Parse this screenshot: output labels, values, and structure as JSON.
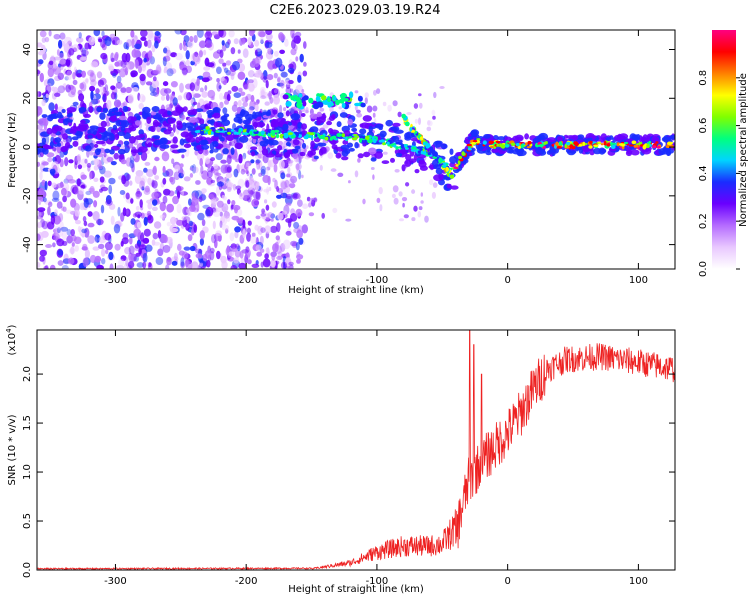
{
  "title": "C2E6.2023.029.03.19.R24",
  "chart_data": [
    {
      "type": "heatmap",
      "xlabel": "Height of straight line (km)",
      "ylabel": "Frequency (Hz)",
      "xlim": [
        -360,
        128
      ],
      "ylim": [
        -50,
        48
      ],
      "xticks": [
        -300,
        -200,
        -100,
        0,
        100
      ],
      "yticks": [
        -40,
        -20,
        0,
        20,
        40
      ],
      "colorbar": {
        "label": "Normalized spectral amplitude",
        "range": [
          0.0,
          1.0
        ],
        "ticks": [
          0.0,
          0.2,
          0.4,
          0.6,
          0.8
        ],
        "colormap": [
          "#ffffff",
          "#e9c8ff",
          "#b56cff",
          "#6a00ff",
          "#1a2cff",
          "#00d4ff",
          "#00ff80",
          "#80ff00",
          "#ffff00",
          "#ff8000",
          "#ff0000",
          "#ff0080"
        ]
      },
      "ridge": [
        {
          "x": -240,
          "f": 7
        },
        {
          "x": -200,
          "f": 6
        },
        {
          "x": -160,
          "f": 5
        },
        {
          "x": -120,
          "f": 4
        },
        {
          "x": -100,
          "f": 3
        },
        {
          "x": -80,
          "f": 0
        },
        {
          "x": -60,
          "f": -2
        },
        {
          "x": -42,
          "f": -10
        },
        {
          "x": -35,
          "f": -4
        },
        {
          "x": -25,
          "f": 3
        },
        {
          "x": -15,
          "f": 1
        },
        {
          "x": 0,
          "f": 1
        },
        {
          "x": 50,
          "f": 0.8
        },
        {
          "x": 128,
          "f": 1
        }
      ]
    },
    {
      "type": "line",
      "xlabel": "Height of straight line (km)",
      "ylabel": "SNR (10 * v/v)",
      "multiplier": "(x10",
      "multiplier_exp": "4",
      "multiplier_close": ")",
      "xlim": [
        -360,
        128
      ],
      "ylim": [
        0.0,
        2.45
      ],
      "xticks": [
        -300,
        -200,
        -100,
        0,
        100
      ],
      "yticks": [
        "0.0",
        "0.5",
        "1.0",
        "1.5",
        "2.0"
      ],
      "color": "#ee2222",
      "envelope": [
        {
          "x": -360,
          "y": 0.005
        },
        {
          "x": -150,
          "y": 0.01
        },
        {
          "x": -120,
          "y": 0.06
        },
        {
          "x": -100,
          "y": 0.15
        },
        {
          "x": -80,
          "y": 0.2
        },
        {
          "x": -60,
          "y": 0.2
        },
        {
          "x": -50,
          "y": 0.22
        },
        {
          "x": -40,
          "y": 0.35
        },
        {
          "x": -30,
          "y": 0.9
        },
        {
          "x": -20,
          "y": 1.1
        },
        {
          "x": -10,
          "y": 1.25
        },
        {
          "x": 0,
          "y": 1.4
        },
        {
          "x": 10,
          "y": 1.6
        },
        {
          "x": 20,
          "y": 1.85
        },
        {
          "x": 30,
          "y": 2.05
        },
        {
          "x": 45,
          "y": 2.15
        },
        {
          "x": 70,
          "y": 2.18
        },
        {
          "x": 100,
          "y": 2.12
        },
        {
          "x": 128,
          "y": 2.05
        }
      ],
      "spikes": [
        {
          "x": -29,
          "y": 2.45
        },
        {
          "x": -26,
          "y": 2.3
        },
        {
          "x": -20,
          "y": 2.0
        }
      ]
    }
  ]
}
